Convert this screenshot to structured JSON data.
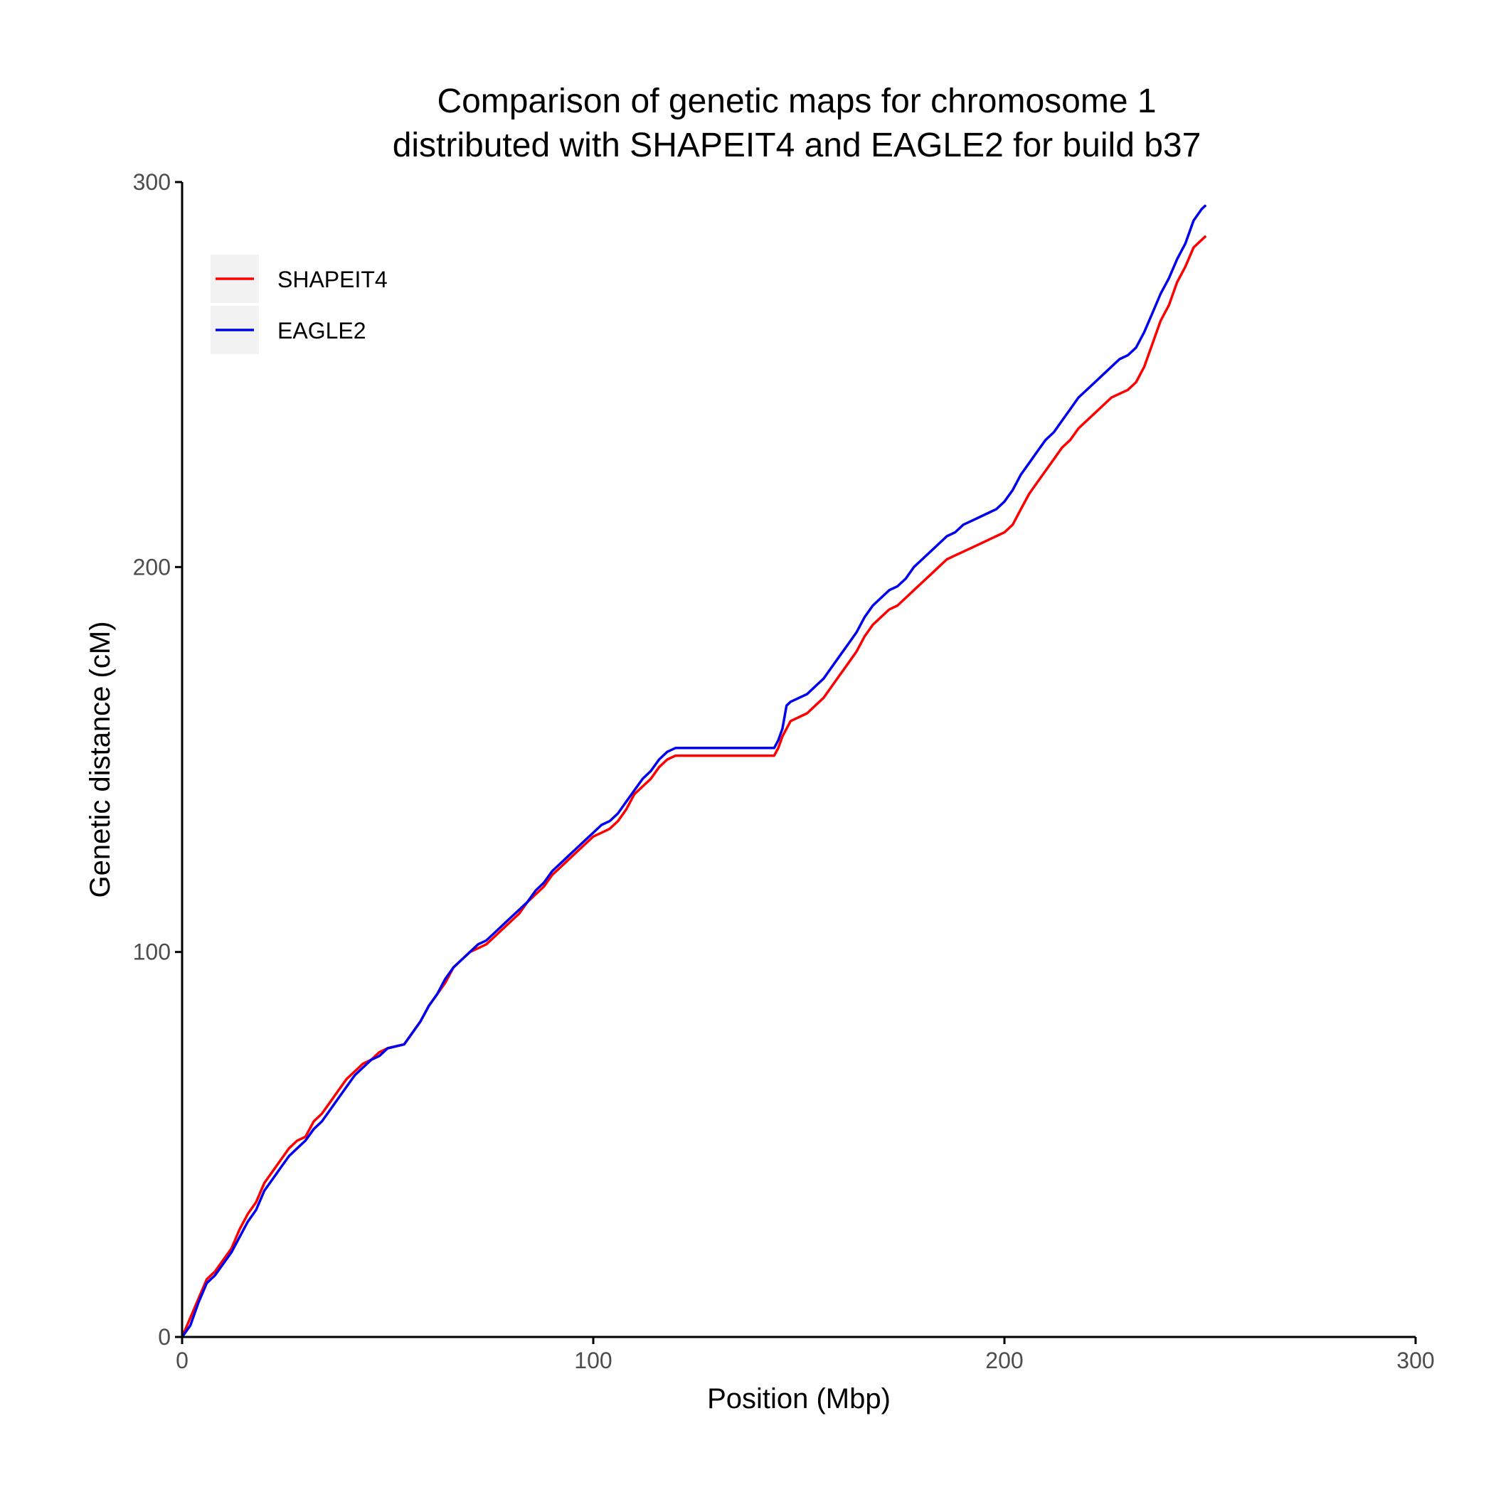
{
  "chart_data": {
    "type": "line",
    "title": "Comparison of genetic maps for chromosome 1",
    "subtitle": "distributed with SHAPEIT4 and EAGLE2 for build b37",
    "xlabel": "Position (Mbp)",
    "ylabel": "Genetic distance (cM)",
    "xlim": [
      0,
      300
    ],
    "ylim": [
      0,
      300
    ],
    "xticks": [
      "0",
      "100",
      "200",
      "300"
    ],
    "yticks": [
      "0",
      "100",
      "200",
      "300"
    ],
    "grid": false,
    "legend_position": "top-left",
    "series": [
      {
        "name": "SHAPEIT4",
        "color": "#ff0000",
        "points": [
          [
            0,
            0
          ],
          [
            2,
            5
          ],
          [
            4,
            10
          ],
          [
            6,
            15
          ],
          [
            8,
            17
          ],
          [
            10,
            20
          ],
          [
            12,
            23
          ],
          [
            14,
            28
          ],
          [
            16,
            32
          ],
          [
            18,
            35
          ],
          [
            20,
            40
          ],
          [
            22,
            43
          ],
          [
            24,
            46
          ],
          [
            26,
            49
          ],
          [
            28,
            51
          ],
          [
            30,
            52
          ],
          [
            32,
            56
          ],
          [
            34,
            58
          ],
          [
            36,
            61
          ],
          [
            38,
            64
          ],
          [
            40,
            67
          ],
          [
            42,
            69
          ],
          [
            44,
            71
          ],
          [
            46,
            72
          ],
          [
            48,
            74
          ],
          [
            50,
            75
          ],
          [
            54,
            76
          ],
          [
            56,
            79
          ],
          [
            58,
            82
          ],
          [
            60,
            86
          ],
          [
            62,
            89
          ],
          [
            64,
            92
          ],
          [
            66,
            96
          ],
          [
            68,
            98
          ],
          [
            70,
            100
          ],
          [
            72,
            101
          ],
          [
            74,
            102
          ],
          [
            76,
            104
          ],
          [
            78,
            106
          ],
          [
            80,
            108
          ],
          [
            82,
            110
          ],
          [
            84,
            113
          ],
          [
            86,
            115
          ],
          [
            88,
            117
          ],
          [
            90,
            120
          ],
          [
            92,
            122
          ],
          [
            94,
            124
          ],
          [
            96,
            126
          ],
          [
            98,
            128
          ],
          [
            100,
            130
          ],
          [
            102,
            131
          ],
          [
            104,
            132
          ],
          [
            106,
            134
          ],
          [
            108,
            137
          ],
          [
            110,
            141
          ],
          [
            112,
            143
          ],
          [
            114,
            145
          ],
          [
            116,
            148
          ],
          [
            118,
            150
          ],
          [
            120,
            151
          ],
          [
            125,
            151
          ],
          [
            130,
            151
          ],
          [
            135,
            151
          ],
          [
            140,
            151
          ],
          [
            144,
            151
          ],
          [
            145,
            153
          ],
          [
            146,
            156
          ],
          [
            147,
            158
          ],
          [
            148,
            160
          ],
          [
            150,
            161
          ],
          [
            152,
            162
          ],
          [
            154,
            164
          ],
          [
            156,
            166
          ],
          [
            158,
            169
          ],
          [
            160,
            172
          ],
          [
            162,
            175
          ],
          [
            164,
            178
          ],
          [
            166,
            182
          ],
          [
            168,
            185
          ],
          [
            170,
            187
          ],
          [
            172,
            189
          ],
          [
            174,
            190
          ],
          [
            176,
            192
          ],
          [
            178,
            194
          ],
          [
            180,
            196
          ],
          [
            182,
            198
          ],
          [
            184,
            200
          ],
          [
            186,
            202
          ],
          [
            188,
            203
          ],
          [
            190,
            204
          ],
          [
            192,
            205
          ],
          [
            194,
            206
          ],
          [
            196,
            207
          ],
          [
            198,
            208
          ],
          [
            200,
            209
          ],
          [
            202,
            211
          ],
          [
            204,
            215
          ],
          [
            206,
            219
          ],
          [
            208,
            222
          ],
          [
            210,
            225
          ],
          [
            212,
            228
          ],
          [
            214,
            231
          ],
          [
            216,
            233
          ],
          [
            218,
            236
          ],
          [
            220,
            238
          ],
          [
            222,
            240
          ],
          [
            224,
            242
          ],
          [
            226,
            244
          ],
          [
            228,
            245
          ],
          [
            230,
            246
          ],
          [
            232,
            248
          ],
          [
            234,
            252
          ],
          [
            236,
            258
          ],
          [
            238,
            264
          ],
          [
            240,
            268
          ],
          [
            242,
            274
          ],
          [
            244,
            278
          ],
          [
            246,
            283
          ],
          [
            248,
            285
          ],
          [
            249,
            286
          ]
        ]
      },
      {
        "name": "EAGLE2",
        "color": "#0000ee",
        "points": [
          [
            0,
            0
          ],
          [
            2,
            3
          ],
          [
            4,
            9
          ],
          [
            6,
            14
          ],
          [
            8,
            16
          ],
          [
            10,
            19
          ],
          [
            12,
            22
          ],
          [
            14,
            26
          ],
          [
            16,
            30
          ],
          [
            18,
            33
          ],
          [
            20,
            38
          ],
          [
            22,
            41
          ],
          [
            24,
            44
          ],
          [
            26,
            47
          ],
          [
            28,
            49
          ],
          [
            30,
            51
          ],
          [
            32,
            54
          ],
          [
            34,
            56
          ],
          [
            36,
            59
          ],
          [
            38,
            62
          ],
          [
            40,
            65
          ],
          [
            42,
            68
          ],
          [
            44,
            70
          ],
          [
            46,
            72
          ],
          [
            48,
            73
          ],
          [
            50,
            75
          ],
          [
            54,
            76
          ],
          [
            56,
            79
          ],
          [
            58,
            82
          ],
          [
            60,
            86
          ],
          [
            62,
            89
          ],
          [
            64,
            93
          ],
          [
            66,
            96
          ],
          [
            68,
            98
          ],
          [
            70,
            100
          ],
          [
            72,
            102
          ],
          [
            74,
            103
          ],
          [
            76,
            105
          ],
          [
            78,
            107
          ],
          [
            80,
            109
          ],
          [
            82,
            111
          ],
          [
            84,
            113
          ],
          [
            86,
            116
          ],
          [
            88,
            118
          ],
          [
            90,
            121
          ],
          [
            92,
            123
          ],
          [
            94,
            125
          ],
          [
            96,
            127
          ],
          [
            98,
            129
          ],
          [
            100,
            131
          ],
          [
            102,
            133
          ],
          [
            104,
            134
          ],
          [
            106,
            136
          ],
          [
            108,
            139
          ],
          [
            110,
            142
          ],
          [
            112,
            145
          ],
          [
            114,
            147
          ],
          [
            116,
            150
          ],
          [
            118,
            152
          ],
          [
            120,
            153
          ],
          [
            125,
            153
          ],
          [
            130,
            153
          ],
          [
            135,
            153
          ],
          [
            140,
            153
          ],
          [
            144,
            153
          ],
          [
            145,
            155
          ],
          [
            146,
            158
          ],
          [
            147,
            164
          ],
          [
            148,
            165
          ],
          [
            150,
            166
          ],
          [
            152,
            167
          ],
          [
            154,
            169
          ],
          [
            156,
            171
          ],
          [
            158,
            174
          ],
          [
            160,
            177
          ],
          [
            162,
            180
          ],
          [
            164,
            183
          ],
          [
            166,
            187
          ],
          [
            168,
            190
          ],
          [
            170,
            192
          ],
          [
            172,
            194
          ],
          [
            174,
            195
          ],
          [
            176,
            197
          ],
          [
            178,
            200
          ],
          [
            180,
            202
          ],
          [
            182,
            204
          ],
          [
            184,
            206
          ],
          [
            186,
            208
          ],
          [
            188,
            209
          ],
          [
            190,
            211
          ],
          [
            192,
            212
          ],
          [
            194,
            213
          ],
          [
            196,
            214
          ],
          [
            198,
            215
          ],
          [
            200,
            217
          ],
          [
            202,
            220
          ],
          [
            204,
            224
          ],
          [
            206,
            227
          ],
          [
            208,
            230
          ],
          [
            210,
            233
          ],
          [
            212,
            235
          ],
          [
            214,
            238
          ],
          [
            216,
            241
          ],
          [
            218,
            244
          ],
          [
            220,
            246
          ],
          [
            222,
            248
          ],
          [
            224,
            250
          ],
          [
            226,
            252
          ],
          [
            228,
            254
          ],
          [
            230,
            255
          ],
          [
            232,
            257
          ],
          [
            234,
            261
          ],
          [
            236,
            266
          ],
          [
            238,
            271
          ],
          [
            240,
            275
          ],
          [
            242,
            280
          ],
          [
            244,
            284
          ],
          [
            246,
            290
          ],
          [
            248,
            293
          ],
          [
            249,
            294
          ]
        ]
      }
    ]
  }
}
